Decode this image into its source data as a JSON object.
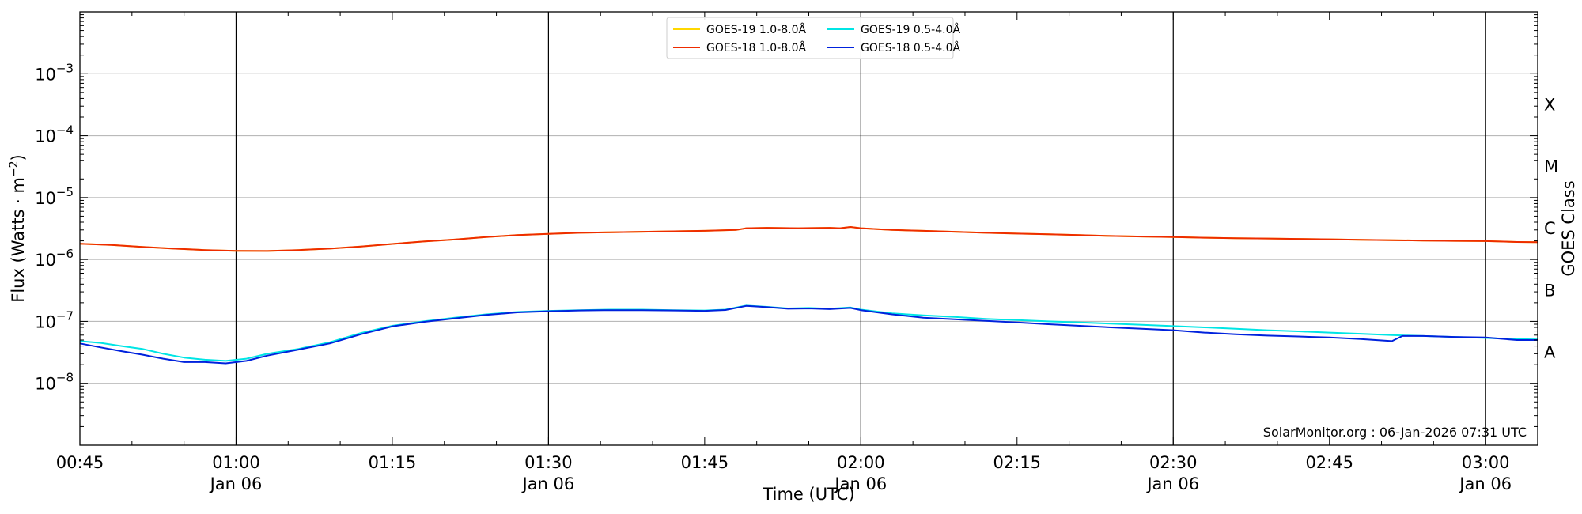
{
  "chart_data": {
    "type": "line",
    "title": "",
    "xlabel": "Time (UTC)",
    "ylabel": "Flux (Watts · m⁻²)",
    "y2label": "GOES Class",
    "yscale": "log",
    "ylim": [
      1e-09,
      0.01
    ],
    "xlim": [
      "00:45",
      "03:05"
    ],
    "grid": "horizontal at decades",
    "legend": "top-center",
    "credit": "SolarMonitor.org : 06-Jan-2026 07:31 UTC",
    "x_ticks": [
      {
        "t": "00:45",
        "label": "00:45",
        "sub": ""
      },
      {
        "t": "01:00",
        "label": "01:00",
        "sub": "Jan 06"
      },
      {
        "t": "01:15",
        "label": "01:15",
        "sub": ""
      },
      {
        "t": "01:30",
        "label": "01:30",
        "sub": "Jan 06"
      },
      {
        "t": "01:45",
        "label": "01:45",
        "sub": ""
      },
      {
        "t": "02:00",
        "label": "02:00",
        "sub": "Jan 06"
      },
      {
        "t": "02:15",
        "label": "02:15",
        "sub": ""
      },
      {
        "t": "02:30",
        "label": "02:30",
        "sub": "Jan 06"
      },
      {
        "t": "02:45",
        "label": "02:45",
        "sub": ""
      },
      {
        "t": "03:00",
        "label": "03:00",
        "sub": "Jan 06"
      }
    ],
    "vlines": [
      "01:00",
      "01:30",
      "02:00",
      "02:30",
      "03:00"
    ],
    "y_ticks": [
      {
        "exp": -8,
        "label": "10",
        "sup": "−8"
      },
      {
        "exp": -7,
        "label": "10",
        "sup": "−7"
      },
      {
        "exp": -6,
        "label": "10",
        "sup": "−6"
      },
      {
        "exp": -5,
        "label": "10",
        "sup": "−5"
      },
      {
        "exp": -4,
        "label": "10",
        "sup": "−4"
      },
      {
        "exp": -3,
        "label": "10",
        "sup": "−3"
      }
    ],
    "goes_classes": [
      {
        "label": "A",
        "exp": -7.5
      },
      {
        "label": "B",
        "exp": -6.5
      },
      {
        "label": "C",
        "exp": -5.5
      },
      {
        "label": "M",
        "exp": -4.5
      },
      {
        "label": "X",
        "exp": -3.5
      }
    ],
    "series": [
      {
        "name": "GOES-19 1.0-8.0Å",
        "color": "#ffd700",
        "x": [
          "00:45",
          "00:48",
          "00:51",
          "00:54",
          "00:57",
          "01:00",
          "01:03",
          "01:06",
          "01:09",
          "01:12",
          "01:15",
          "01:18",
          "01:21",
          "01:24",
          "01:27",
          "01:30",
          "01:33",
          "01:36",
          "01:39",
          "01:42",
          "01:45",
          "01:48",
          "01:49",
          "01:51",
          "01:54",
          "01:57",
          "01:58",
          "01:59",
          "02:00",
          "02:03",
          "02:06",
          "02:09",
          "02:12",
          "02:15",
          "02:18",
          "02:21",
          "02:24",
          "02:27",
          "02:30",
          "02:33",
          "02:36",
          "02:39",
          "02:42",
          "02:45",
          "02:48",
          "02:51",
          "02:54",
          "02:57",
          "03:00",
          "03:03",
          "03:05"
        ],
        "y": [
          1.8e-06,
          1.72e-06,
          1.6e-06,
          1.5e-06,
          1.42e-06,
          1.38e-06,
          1.37e-06,
          1.42e-06,
          1.5e-06,
          1.62e-06,
          1.78e-06,
          1.95e-06,
          2.1e-06,
          2.3e-06,
          2.48e-06,
          2.6e-06,
          2.7e-06,
          2.75e-06,
          2.8e-06,
          2.85e-06,
          2.9e-06,
          3e-06,
          3.2e-06,
          3.25e-06,
          3.2e-06,
          3.25e-06,
          3.2e-06,
          3.35e-06,
          3.2e-06,
          3e-06,
          2.9e-06,
          2.8e-06,
          2.7e-06,
          2.62e-06,
          2.55e-06,
          2.48e-06,
          2.4e-06,
          2.35e-06,
          2.3e-06,
          2.25e-06,
          2.2e-06,
          2.18e-06,
          2.15e-06,
          2.12e-06,
          2.08e-06,
          2.05e-06,
          2.02e-06,
          2e-06,
          1.98e-06,
          1.92e-06,
          1.9e-06
        ]
      },
      {
        "name": "GOES-18 1.0-8.0Å",
        "color": "#ee2c00",
        "x": [
          "00:45",
          "00:48",
          "00:51",
          "00:54",
          "00:57",
          "01:00",
          "01:03",
          "01:06",
          "01:09",
          "01:12",
          "01:15",
          "01:18",
          "01:21",
          "01:24",
          "01:27",
          "01:30",
          "01:33",
          "01:36",
          "01:39",
          "01:42",
          "01:45",
          "01:48",
          "01:49",
          "01:51",
          "01:54",
          "01:57",
          "01:58",
          "01:59",
          "02:00",
          "02:03",
          "02:06",
          "02:09",
          "02:12",
          "02:15",
          "02:18",
          "02:21",
          "02:24",
          "02:27",
          "02:30",
          "02:33",
          "02:36",
          "02:39",
          "02:42",
          "02:45",
          "02:48",
          "02:51",
          "02:54",
          "02:57",
          "03:00",
          "03:03",
          "03:05"
        ],
        "y": [
          1.8e-06,
          1.72e-06,
          1.6e-06,
          1.5e-06,
          1.42e-06,
          1.38e-06,
          1.37e-06,
          1.42e-06,
          1.5e-06,
          1.62e-06,
          1.78e-06,
          1.95e-06,
          2.1e-06,
          2.3e-06,
          2.48e-06,
          2.6e-06,
          2.7e-06,
          2.75e-06,
          2.8e-06,
          2.85e-06,
          2.9e-06,
          3e-06,
          3.2e-06,
          3.25e-06,
          3.2e-06,
          3.25e-06,
          3.2e-06,
          3.35e-06,
          3.2e-06,
          3e-06,
          2.9e-06,
          2.8e-06,
          2.7e-06,
          2.62e-06,
          2.55e-06,
          2.48e-06,
          2.4e-06,
          2.35e-06,
          2.3e-06,
          2.25e-06,
          2.2e-06,
          2.18e-06,
          2.15e-06,
          2.12e-06,
          2.08e-06,
          2.05e-06,
          2.02e-06,
          2e-06,
          1.98e-06,
          1.92e-06,
          1.9e-06
        ]
      },
      {
        "name": "GOES-19 0.5-4.0Å",
        "color": "#00e5e5",
        "x": [
          "00:45",
          "00:47",
          "00:49",
          "00:51",
          "00:53",
          "00:55",
          "00:57",
          "00:59",
          "01:01",
          "01:03",
          "01:06",
          "01:09",
          "01:12",
          "01:15",
          "01:18",
          "01:21",
          "01:24",
          "01:27",
          "01:30",
          "01:33",
          "01:36",
          "01:39",
          "01:42",
          "01:45",
          "01:47",
          "01:49",
          "01:51",
          "01:53",
          "01:55",
          "01:57",
          "01:59",
          "02:00",
          "02:03",
          "02:06",
          "02:09",
          "02:12",
          "02:15",
          "02:18",
          "02:21",
          "02:24",
          "02:27",
          "02:30",
          "02:33",
          "02:36",
          "02:39",
          "02:42",
          "02:45",
          "02:48",
          "02:51",
          "02:54",
          "02:57",
          "03:00",
          "03:03",
          "03:05"
        ],
        "y": [
          4.8e-08,
          4.5e-08,
          4e-08,
          3.6e-08,
          3e-08,
          2.6e-08,
          2.4e-08,
          2.3e-08,
          2.5e-08,
          3e-08,
          3.6e-08,
          4.6e-08,
          6.5e-08,
          8.5e-08,
          1e-07,
          1.15e-07,
          1.3e-07,
          1.42e-07,
          1.48e-07,
          1.52e-07,
          1.55e-07,
          1.55e-07,
          1.52e-07,
          1.5e-07,
          1.55e-07,
          1.8e-07,
          1.72e-07,
          1.62e-07,
          1.65e-07,
          1.6e-07,
          1.68e-07,
          1.55e-07,
          1.35e-07,
          1.25e-07,
          1.18e-07,
          1.1e-07,
          1.05e-07,
          1e-07,
          9.6e-08,
          9.2e-08,
          8.8e-08,
          8.4e-08,
          8e-08,
          7.6e-08,
          7.2e-08,
          6.9e-08,
          6.6e-08,
          6.3e-08,
          6e-08,
          5.8e-08,
          5.6e-08,
          5.4e-08,
          5.2e-08,
          5.1e-08
        ]
      },
      {
        "name": "GOES-18 0.5-4.0Å",
        "color": "#0022dd",
        "x": [
          "00:45",
          "00:47",
          "00:49",
          "00:51",
          "00:53",
          "00:55",
          "00:57",
          "00:59",
          "01:01",
          "01:03",
          "01:06",
          "01:09",
          "01:12",
          "01:15",
          "01:18",
          "01:21",
          "01:24",
          "01:27",
          "01:30",
          "01:33",
          "01:36",
          "01:39",
          "01:42",
          "01:45",
          "01:47",
          "01:49",
          "01:51",
          "01:53",
          "01:55",
          "01:57",
          "01:59",
          "02:00",
          "02:03",
          "02:06",
          "02:09",
          "02:12",
          "02:15",
          "02:18",
          "02:21",
          "02:24",
          "02:27",
          "02:30",
          "02:33",
          "02:36",
          "02:39",
          "02:42",
          "02:45",
          "02:48",
          "02:51",
          "02:52",
          "02:54",
          "02:57",
          "03:00",
          "03:03",
          "03:05"
        ],
        "y": [
          4.4e-08,
          3.8e-08,
          3.3e-08,
          2.9e-08,
          2.5e-08,
          2.2e-08,
          2.2e-08,
          2.1e-08,
          2.3e-08,
          2.8e-08,
          3.5e-08,
          4.4e-08,
          6.2e-08,
          8.3e-08,
          9.8e-08,
          1.12e-07,
          1.27e-07,
          1.4e-07,
          1.46e-07,
          1.5e-07,
          1.52e-07,
          1.52e-07,
          1.5e-07,
          1.48e-07,
          1.53e-07,
          1.78e-07,
          1.7e-07,
          1.6e-07,
          1.62e-07,
          1.58e-07,
          1.65e-07,
          1.52e-07,
          1.3e-07,
          1.15e-07,
          1.08e-07,
          1.02e-07,
          9.6e-08,
          9e-08,
          8.5e-08,
          8e-08,
          7.6e-08,
          7.2e-08,
          6.6e-08,
          6.2e-08,
          5.9e-08,
          5.7e-08,
          5.5e-08,
          5.2e-08,
          4.8e-08,
          5.8e-08,
          5.8e-08,
          5.6e-08,
          5.5e-08,
          5e-08,
          5e-08
        ]
      }
    ]
  }
}
